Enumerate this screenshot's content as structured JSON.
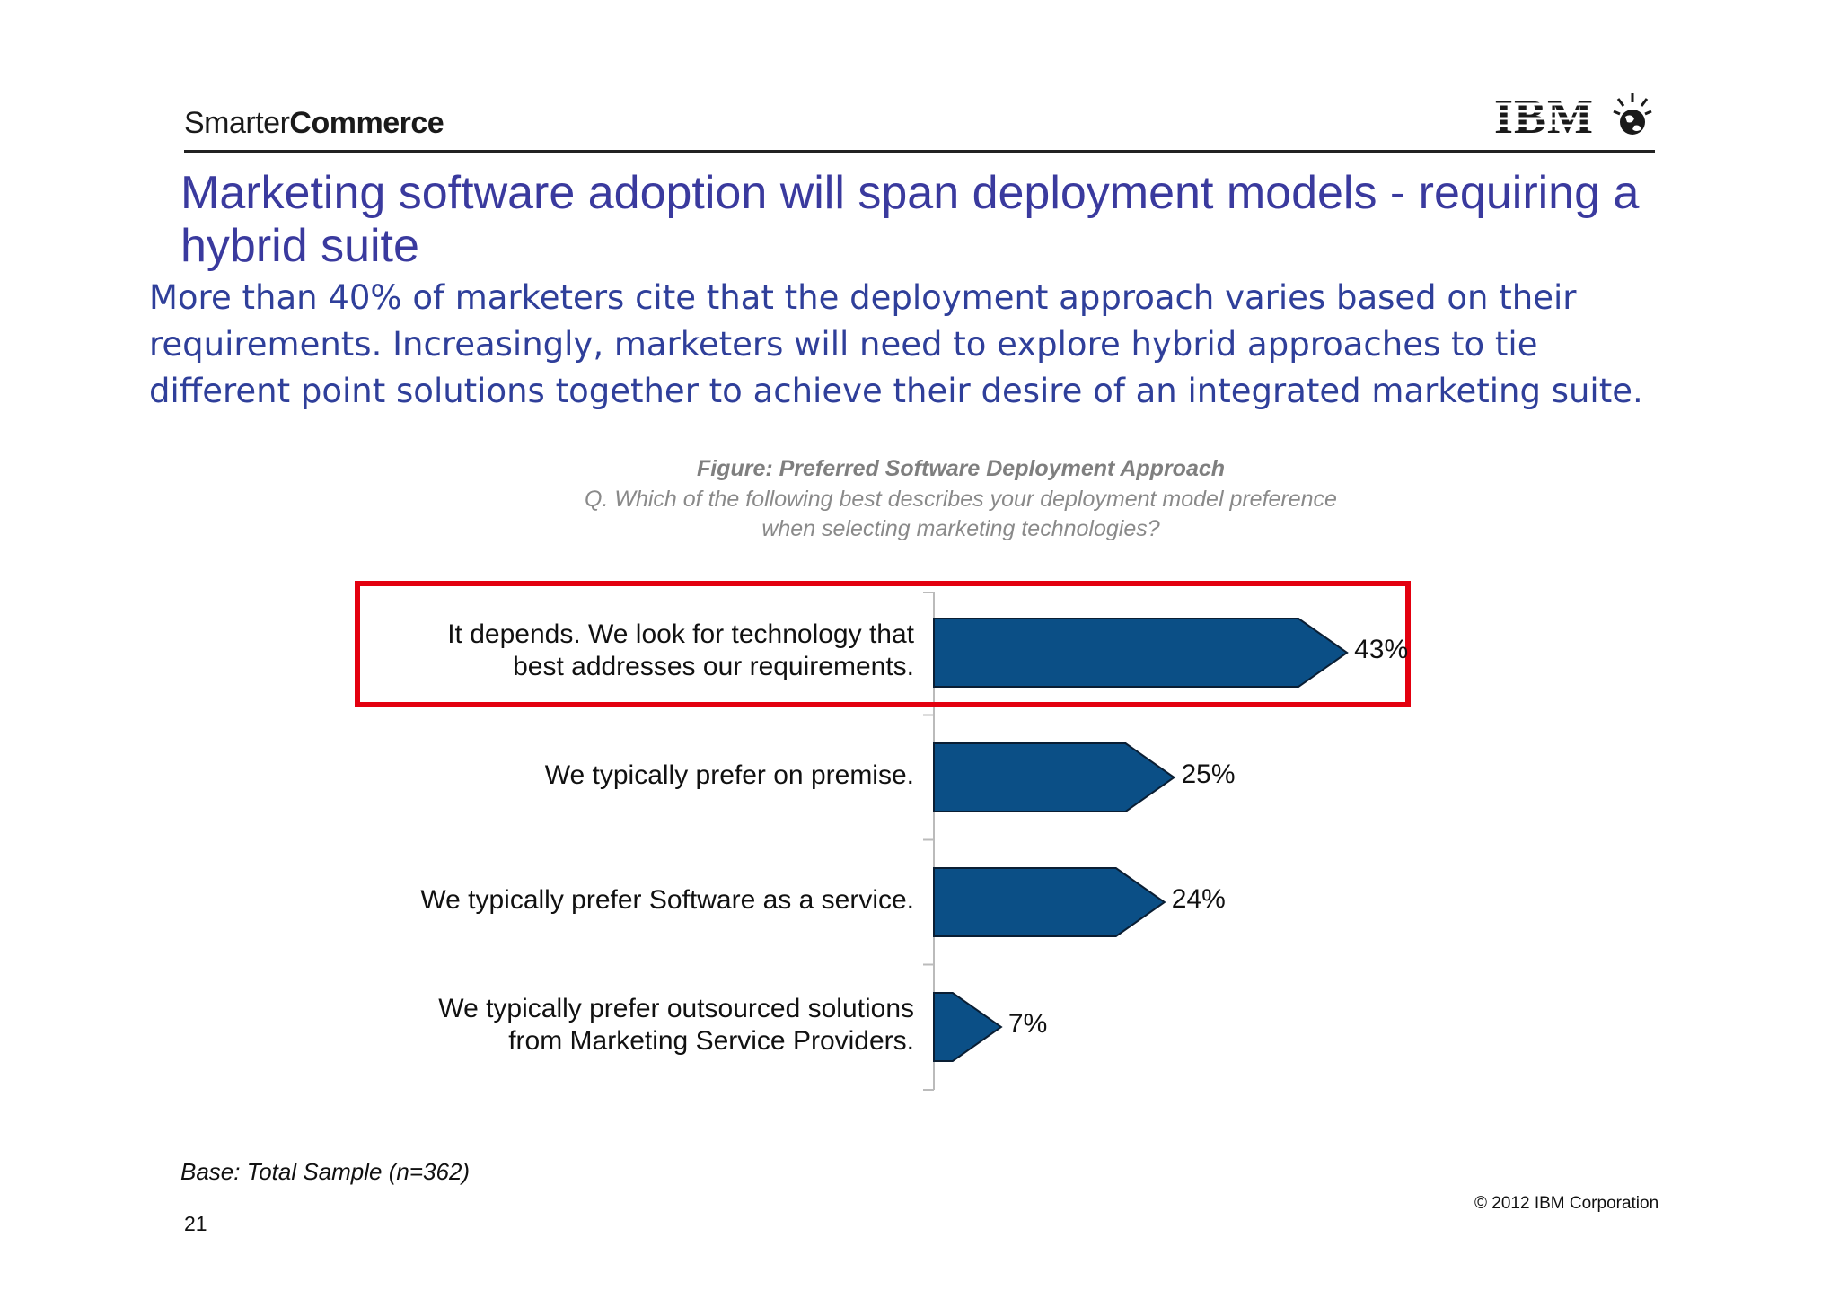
{
  "header": {
    "brand_light": "Smarter",
    "brand_bold": "Commerce",
    "logo_text": "IBM"
  },
  "slide": {
    "title": "Marketing software adoption will span deployment models - requiring a hybrid suite",
    "subtitle": "More than 40% of marketers cite that the deployment approach varies based on their requirements.  Increasingly, marketers will need to explore hybrid approaches to tie different point solutions together to achieve their desire of an integrated marketing suite."
  },
  "figure": {
    "title": "Figure: Preferred Software Deployment Approach",
    "question_line1": "Q. Which of the following best describes your deployment model preference",
    "question_line2": "when selecting marketing technologies?"
  },
  "chart_data": {
    "type": "bar",
    "orientation": "horizontal",
    "categories": [
      "It depends. We look for technology that best addresses our requirements.",
      "We typically prefer on premise.",
      "We typically prefer Software as a service.",
      "We typically prefer outsourced solutions from Marketing Service Providers."
    ],
    "category_lines": [
      [
        "It depends. We look for technology that",
        "best addresses our requirements."
      ],
      [
        "We typically prefer on premise."
      ],
      [
        "We typically prefer Software as a service."
      ],
      [
        "We typically prefer outsourced solutions",
        "from Marketing Service Providers."
      ]
    ],
    "values": [
      43,
      25,
      24,
      7
    ],
    "value_labels": [
      "43%",
      "25%",
      "24%",
      "7%"
    ],
    "unit": "%",
    "highlighted_index": 0,
    "bar_color": "#0b4f86",
    "highlight_color": "#e3000f",
    "grid": false
  },
  "footer": {
    "base_note": "Base: Total Sample (n=362)",
    "copyright": "© 2012 IBM Corporation",
    "page_number": "21"
  }
}
